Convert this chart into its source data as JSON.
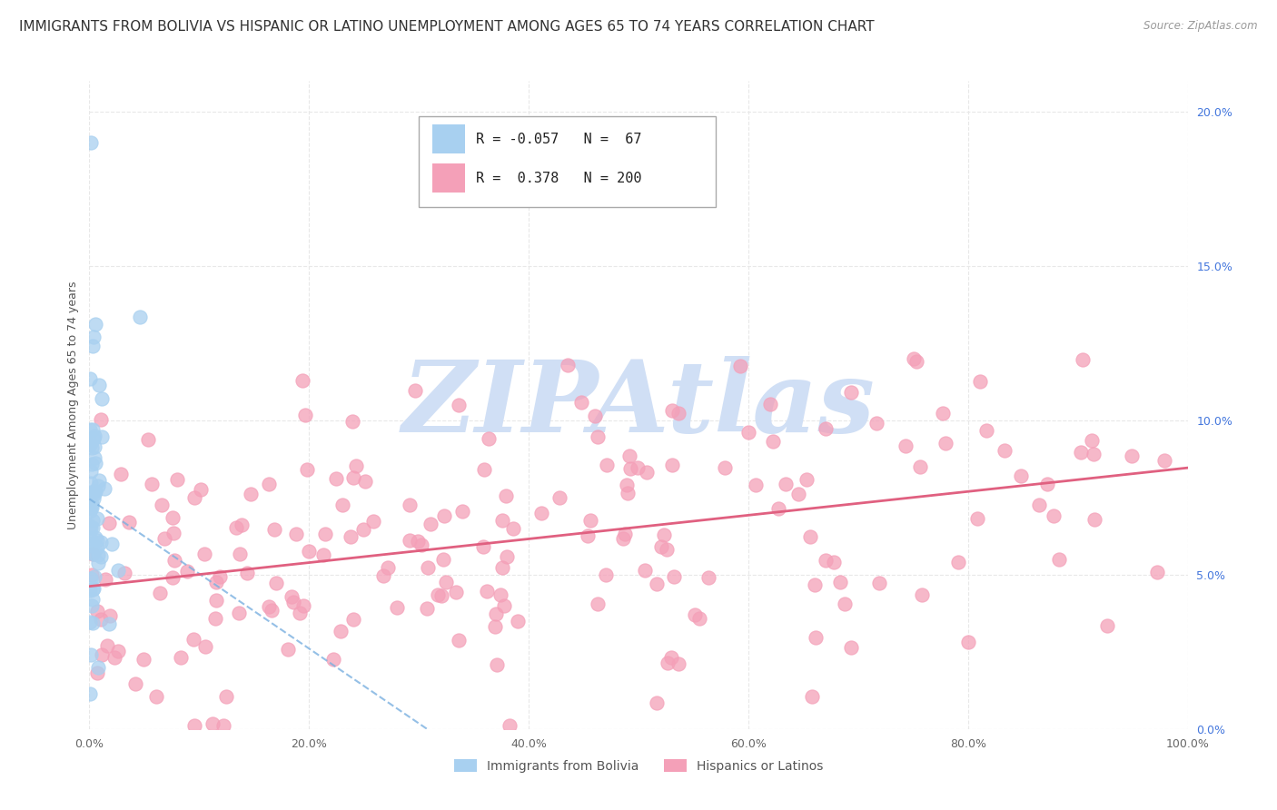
{
  "title": "IMMIGRANTS FROM BOLIVIA VS HISPANIC OR LATINO UNEMPLOYMENT AMONG AGES 65 TO 74 YEARS CORRELATION CHART",
  "source": "Source: ZipAtlas.com",
  "ylabel": "Unemployment Among Ages 65 to 74 years",
  "xlim": [
    0,
    1.0
  ],
  "ylim": [
    0.0,
    0.21
  ],
  "xticks": [
    0.0,
    0.2,
    0.4,
    0.6,
    0.8,
    1.0
  ],
  "yticks": [
    0.0,
    0.05,
    0.1,
    0.15,
    0.2
  ],
  "xticklabels": [
    "0.0%",
    "20.0%",
    "40.0%",
    "60.0%",
    "80.0%",
    "100.0%"
  ],
  "yticklabels": [
    "0.0%",
    "5.0%",
    "10.0%",
    "15.0%",
    "20.0%"
  ],
  "bolivia_R": -0.057,
  "bolivia_N": 67,
  "bolivia_color": "#a8d0f0",
  "bolivia_line_color": "#7ab0e0",
  "hispanic_R": 0.378,
  "hispanic_N": 200,
  "hispanic_color": "#f4a0b8",
  "hispanic_line_color": "#e06080",
  "watermark": "ZIPAtlas",
  "watermark_color": "#d0dff5",
  "background_color": "#ffffff",
  "grid_color": "#e8e8e8",
  "title_fontsize": 11,
  "axis_label_fontsize": 9,
  "tick_fontsize": 9,
  "ytick_color": "#4477dd",
  "xtick_color": "#666666",
  "legend_label1": "Immigrants from Bolivia",
  "legend_label2": "Hispanics or Latinos"
}
